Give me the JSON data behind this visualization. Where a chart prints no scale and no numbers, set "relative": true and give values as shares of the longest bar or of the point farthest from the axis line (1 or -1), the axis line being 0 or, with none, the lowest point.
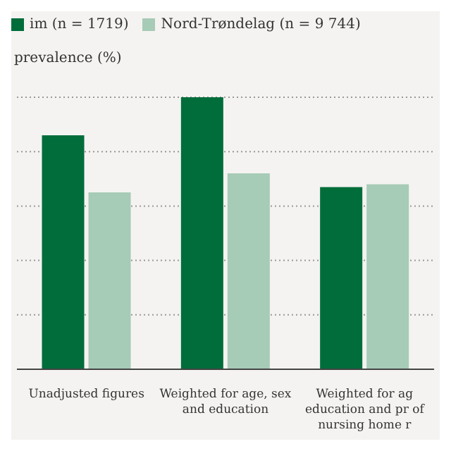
{
  "chart_data": {
    "type": "bar",
    "ylabel": "prevalence (%)",
    "categories": [
      "Unadjusted figures",
      "Weighted for age, sex and education",
      "Weighted for ag education and pr of nursing home r"
    ],
    "relative": true,
    "grid": "y",
    "legend": "top left",
    "series": [
      {
        "name": "im (n = 1719)",
        "color": "#006d3a",
        "values": [
          0.86,
          1,
          0.67
        ]
      },
      {
        "name": "Nord-Trøndelag (n = 9 744)",
        "color": "#a6cbb6",
        "values": [
          0.65,
          0.72,
          0.68
        ]
      }
    ]
  }
}
